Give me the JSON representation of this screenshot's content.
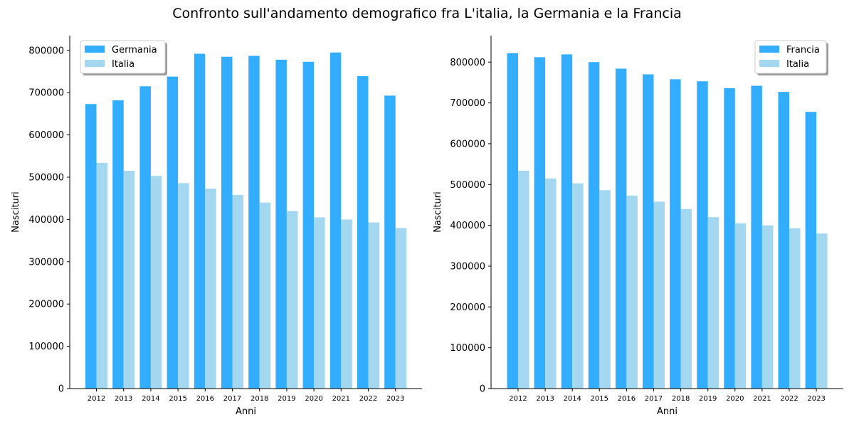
{
  "figure": {
    "title": "Confronto sull'andamento demografico fra L'italia, la Germania e la Francia"
  },
  "chart_data": [
    {
      "type": "bar",
      "categories": [
        "2012",
        "2013",
        "2014",
        "2015",
        "2016",
        "2017",
        "2018",
        "2019",
        "2020",
        "2021",
        "2022",
        "2023"
      ],
      "series": [
        {
          "name": "Germania",
          "color": "#33adff",
          "values": [
            673000,
            682000,
            715000,
            738000,
            792000,
            785000,
            787000,
            778000,
            773000,
            795000,
            739000,
            693000
          ]
        },
        {
          "name": "Italia",
          "color": "#a3d8f0",
          "values": [
            534000,
            515000,
            503000,
            486000,
            473000,
            458000,
            440000,
            420000,
            405000,
            400000,
            393000,
            380000
          ]
        }
      ],
      "xlabel": "Anni",
      "ylabel": "Nascituri",
      "ylim": [
        0,
        835000
      ],
      "yticks": [
        0,
        100000,
        200000,
        300000,
        400000,
        500000,
        600000,
        700000,
        800000
      ],
      "grid": false,
      "legend_position": "top-left"
    },
    {
      "type": "bar",
      "categories": [
        "2012",
        "2013",
        "2014",
        "2015",
        "2016",
        "2017",
        "2018",
        "2019",
        "2020",
        "2021",
        "2022",
        "2023"
      ],
      "series": [
        {
          "name": "Francia",
          "color": "#33adff",
          "values": [
            822000,
            812000,
            819000,
            800000,
            784000,
            770000,
            758000,
            753000,
            736000,
            742000,
            727000,
            678000
          ]
        },
        {
          "name": "Italia",
          "color": "#a3d8f0",
          "values": [
            534000,
            515000,
            503000,
            486000,
            473000,
            458000,
            440000,
            420000,
            405000,
            400000,
            393000,
            380000
          ]
        }
      ],
      "xlabel": "Anni",
      "ylabel": "Nascituri",
      "ylim": [
        0,
        865000
      ],
      "yticks": [
        0,
        100000,
        200000,
        300000,
        400000,
        500000,
        600000,
        700000,
        800000
      ],
      "grid": false,
      "legend_position": "top-right"
    }
  ]
}
